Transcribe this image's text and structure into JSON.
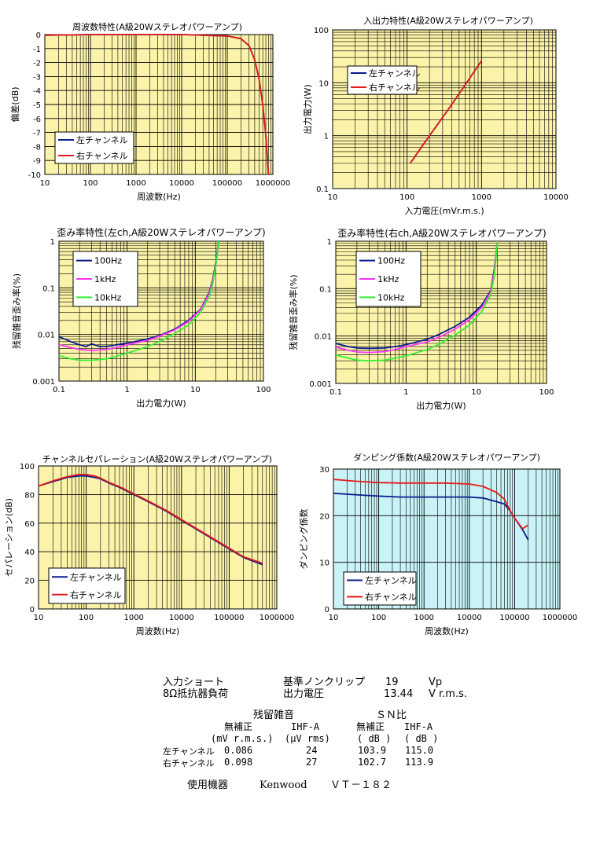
{
  "chart_data": [
    {
      "id": "freq",
      "type": "line",
      "title": "周波数特性(A級20Wステレオパワーアンプ)",
      "xlabel": "周波数(Hz)",
      "ylabel": "偏差(dB)",
      "xscale": "log",
      "xlim": [
        10,
        1000000
      ],
      "ylim": [
        -10,
        0
      ],
      "xticks": [
        10,
        100,
        1000,
        10000,
        100000,
        1000000
      ],
      "xtick_labels": [
        "10",
        "100",
        "1000",
        "10000",
        "100000",
        "1000000"
      ],
      "yticks": [
        0,
        -1,
        -2,
        -3,
        -4,
        -5,
        -6,
        -7,
        -8,
        -9,
        -10
      ],
      "ytick_labels": [
        "0",
        "-1",
        "-2",
        "-3",
        "-4",
        "-5",
        "-6",
        "-7",
        "-8",
        "-9",
        "-10"
      ],
      "background": "#fbf3a9",
      "legend": "bottom-left",
      "series": [
        {
          "name": "左チャンネル",
          "color": "#0a1a8c",
          "x": [
            10,
            100,
            1000,
            10000,
            100000,
            200000,
            300000,
            400000,
            500000,
            600000,
            700000,
            800000
          ],
          "y": [
            -0.05,
            0,
            0,
            0,
            -0.1,
            -0.3,
            -0.8,
            -1.8,
            -3.2,
            -5,
            -7.2,
            -10
          ]
        },
        {
          "name": "右チャンネル",
          "color": "#e41a1c",
          "x": [
            10,
            100,
            1000,
            10000,
            100000,
            200000,
            300000,
            400000,
            500000,
            600000,
            700000,
            800000
          ],
          "y": [
            -0.05,
            0,
            0,
            0,
            -0.1,
            -0.3,
            -0.8,
            -1.8,
            -3.2,
            -5,
            -7.2,
            -10
          ]
        }
      ]
    },
    {
      "id": "io",
      "type": "line",
      "title": "入出力特性(A級20Wステレオパワーアンプ)",
      "xlabel": "入力電圧(mVr.m.s.)",
      "ylabel": "出力電力(W)",
      "xscale": "log",
      "yscale": "log",
      "xlim": [
        10,
        10000
      ],
      "ylim": [
        0.1,
        100
      ],
      "xticks": [
        10,
        100,
        1000,
        10000
      ],
      "xtick_labels": [
        "10",
        "100",
        "1000",
        "10000"
      ],
      "yticks": [
        0.1,
        1,
        10,
        100
      ],
      "ytick_labels": [
        "0.1",
        "1",
        "10",
        "100"
      ],
      "background": "#fbf3a9",
      "legend": "top-left",
      "series": [
        {
          "name": "左チャンネル",
          "color": "#0a1a8c",
          "x": [
            110,
            200,
            350,
            600,
            1000
          ],
          "y": [
            0.3,
            1.0,
            3.0,
            9.0,
            26
          ]
        },
        {
          "name": "右チャンネル",
          "color": "#e41a1c",
          "x": [
            110,
            200,
            350,
            600,
            1000
          ],
          "y": [
            0.3,
            1.0,
            3.0,
            9.0,
            26
          ]
        }
      ]
    },
    {
      "id": "thd_left",
      "type": "line",
      "title": "歪み率特性(左ch,A級20Wステレオパワーアンプ)",
      "xlabel": "出力電力(W)",
      "ylabel": "残留雑音歪み率(%)",
      "xscale": "log",
      "yscale": "log",
      "xlim": [
        0.1,
        100
      ],
      "ylim": [
        0.001,
        1
      ],
      "xticks": [
        0.1,
        1,
        10,
        100
      ],
      "xtick_labels": [
        "0.1",
        "1",
        "10",
        "100"
      ],
      "yticks": [
        0.001,
        0.01,
        0.1,
        1
      ],
      "ytick_labels": [
        "0.001",
        "0.01",
        "0.1",
        "1"
      ],
      "background": "#fbf3a9",
      "legend": "top-left",
      "series": [
        {
          "name": "100Hz",
          "color": "#0a1a8c",
          "x": [
            0.1,
            0.15,
            0.2,
            0.25,
            0.3,
            0.4,
            0.5,
            0.7,
            1,
            2,
            3,
            5,
            8,
            12,
            16,
            18,
            20,
            22
          ],
          "y": [
            0.009,
            0.007,
            0.006,
            0.0055,
            0.0063,
            0.0055,
            0.0055,
            0.006,
            0.0065,
            0.008,
            0.0095,
            0.013,
            0.02,
            0.035,
            0.08,
            0.15,
            0.35,
            1.0
          ]
        },
        {
          "name": "1kHz",
          "color": "#ff33ff",
          "x": [
            0.1,
            0.15,
            0.2,
            0.3,
            0.5,
            0.7,
            1,
            2,
            3,
            5,
            8,
            12,
            16,
            18,
            20,
            22
          ],
          "y": [
            0.006,
            0.0052,
            0.0048,
            0.0045,
            0.0048,
            0.0052,
            0.006,
            0.0075,
            0.0092,
            0.0125,
            0.019,
            0.034,
            0.075,
            0.14,
            0.3,
            0.9
          ]
        },
        {
          "name": "10kHz",
          "color": "#33ee33",
          "x": [
            0.1,
            0.15,
            0.2,
            0.3,
            0.5,
            0.7,
            1,
            2,
            3,
            5,
            8,
            12,
            16,
            18,
            20,
            22
          ],
          "y": [
            0.0035,
            0.003,
            0.0028,
            0.0028,
            0.003,
            0.0034,
            0.004,
            0.0055,
            0.007,
            0.0105,
            0.016,
            0.03,
            0.065,
            0.12,
            0.3,
            1.0
          ]
        }
      ]
    },
    {
      "id": "thd_right",
      "type": "line",
      "title": "歪み率特性(右ch,A級20Wステレオパワーアンプ)",
      "xlabel": "出力電力(W)",
      "ylabel": "残留雑音歪み率(%)",
      "xscale": "log",
      "yscale": "log",
      "xlim": [
        0.1,
        100
      ],
      "ylim": [
        0.001,
        1
      ],
      "xticks": [
        0.1,
        1,
        10,
        100
      ],
      "xtick_labels": [
        "0.1",
        "1",
        "10",
        "100"
      ],
      "yticks": [
        0.001,
        0.01,
        0.1,
        1
      ],
      "ytick_labels": [
        "0.001",
        "0.01",
        "0.1",
        "1"
      ],
      "background": "#fbf3a9",
      "legend": "top-left",
      "series": [
        {
          "name": "100Hz",
          "color": "#0a1a8c",
          "x": [
            0.1,
            0.15,
            0.2,
            0.3,
            0.5,
            0.7,
            1,
            2,
            3,
            5,
            8,
            12,
            16,
            18,
            20
          ],
          "y": [
            0.007,
            0.006,
            0.0056,
            0.0055,
            0.0056,
            0.006,
            0.0066,
            0.0085,
            0.011,
            0.016,
            0.025,
            0.045,
            0.09,
            0.25,
            1.0
          ]
        },
        {
          "name": "1kHz",
          "color": "#ff33ff",
          "x": [
            0.1,
            0.15,
            0.2,
            0.3,
            0.5,
            0.7,
            1,
            2,
            3,
            5,
            8,
            12,
            16,
            18,
            20
          ],
          "y": [
            0.0058,
            0.005,
            0.0046,
            0.0045,
            0.0047,
            0.0052,
            0.006,
            0.0075,
            0.0095,
            0.014,
            0.022,
            0.04,
            0.085,
            0.22,
            1.0
          ]
        },
        {
          "name": "10kHz",
          "color": "#33ee33",
          "x": [
            0.1,
            0.15,
            0.2,
            0.3,
            0.5,
            0.7,
            1,
            2,
            3,
            5,
            8,
            12,
            16,
            18,
            20
          ],
          "y": [
            0.004,
            0.0034,
            0.0031,
            0.003,
            0.0031,
            0.0034,
            0.0038,
            0.0052,
            0.0068,
            0.0105,
            0.017,
            0.033,
            0.075,
            0.18,
            1.0
          ]
        }
      ]
    },
    {
      "id": "sep",
      "type": "line",
      "title": "チャンネルセパレーション(A級20Wステレオパワーアンプ)",
      "xlabel": "周波数(Hz)",
      "ylabel": "セパレーション(dB)",
      "xscale": "log",
      "xlim": [
        10,
        1000000
      ],
      "ylim": [
        0,
        100
      ],
      "xticks": [
        10,
        100,
        1000,
        10000,
        100000,
        1000000
      ],
      "xtick_labels": [
        "10",
        "100",
        "1000",
        "10000",
        "100000",
        "1000000"
      ],
      "yticks": [
        0,
        20,
        40,
        60,
        80,
        100
      ],
      "ytick_labels": [
        "0",
        "20",
        "40",
        "60",
        "80",
        "100"
      ],
      "background": "#fbf3a9",
      "legend": "bottom-left",
      "series": [
        {
          "name": "左チャンネル",
          "color": "#0a1a8c",
          "x": [
            10,
            20,
            40,
            70,
            100,
            150,
            200,
            300,
            500,
            1000,
            2000,
            5000,
            10000,
            20000,
            50000,
            100000,
            200000,
            500000
          ],
          "y": [
            86,
            89,
            92,
            93,
            93,
            92,
            91,
            88,
            85,
            80,
            75,
            68,
            62,
            56,
            48,
            42,
            36,
            31
          ]
        },
        {
          "name": "右チャンネル",
          "color": "#e41a1c",
          "x": [
            10,
            20,
            40,
            70,
            100,
            150,
            200,
            300,
            500,
            1000,
            2000,
            5000,
            10000,
            20000,
            50000,
            100000,
            200000,
            500000
          ],
          "y": [
            86,
            89.5,
            92.5,
            94,
            94,
            93,
            91.5,
            88.5,
            85.5,
            80.5,
            75.5,
            68.5,
            62.5,
            56.5,
            48.5,
            42.5,
            36.5,
            32
          ]
        }
      ]
    },
    {
      "id": "damp",
      "type": "line",
      "title": "ダンピング係数(A級20Wステレオパワーアンプ)",
      "xlabel": "周波数(Hz)",
      "ylabel": "ダンピング係数",
      "xscale": "log",
      "xlim": [
        10,
        1000000
      ],
      "ylim": [
        0,
        30
      ],
      "xticks": [
        10,
        100,
        1000,
        10000,
        100000,
        1000000
      ],
      "xtick_labels": [
        "10",
        "100",
        "1000",
        "10000",
        "100000",
        "1000000"
      ],
      "yticks": [
        0,
        10,
        20,
        30
      ],
      "ytick_labels": [
        "0",
        "10",
        "20",
        "30"
      ],
      "background": "#c9f3f7",
      "legend": "bottom-left",
      "series": [
        {
          "name": "左チャンネル",
          "color": "#0a1a8c",
          "x": [
            10,
            30,
            100,
            300,
            1000,
            3000,
            10000,
            20000,
            40000,
            60000,
            80000,
            100000,
            150000,
            200000
          ],
          "y": [
            24.8,
            24.5,
            24.2,
            24,
            24,
            24,
            24,
            23.8,
            23,
            22.5,
            21,
            19.5,
            17,
            14.8
          ]
        },
        {
          "name": "右チャンネル",
          "color": "#e41a1c",
          "x": [
            10,
            30,
            100,
            300,
            1000,
            3000,
            10000,
            20000,
            40000,
            60000,
            80000,
            100000,
            150000,
            200000
          ],
          "y": [
            27.8,
            27.4,
            27.1,
            27,
            27,
            27,
            26.8,
            26.3,
            25,
            23.5,
            21,
            19.5,
            17.2,
            18
          ]
        }
      ]
    }
  ],
  "notes": {
    "row1": {
      "label": "入力ショート",
      "col2": "基準ノンクリップ",
      "val": "19",
      "unit": "Vp"
    },
    "row2": {
      "label": "8Ω抵抗器負荷",
      "col2": "出力電圧",
      "val": "13.44",
      "unit": "V r.m.s."
    },
    "noise_header": "残留雑音",
    "sn_header": "ＳＮ比",
    "sub_headers": [
      "無補正",
      "IHF-A",
      "無補正",
      "IHF-A"
    ],
    "unit_headers": [
      "(mV r.m.s.)",
      "(μV rms)",
      "( dB )",
      "( dB )"
    ],
    "rows": [
      {
        "label": "左チャンネル",
        "values": [
          "0.086",
          "24",
          "103.9",
          "115.0"
        ]
      },
      {
        "label": "右チャンネル",
        "values": [
          "0.098",
          "27",
          "102.7",
          "113.9"
        ]
      }
    ],
    "equipment_label": "使用機器",
    "equipment_maker": "Kenwood",
    "equipment_model": "ＶＴ－１８２"
  }
}
